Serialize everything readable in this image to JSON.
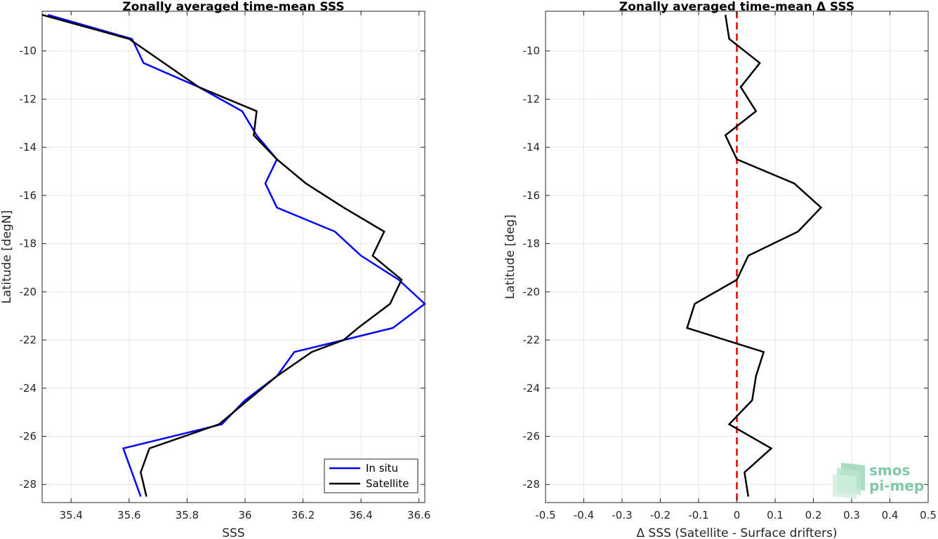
{
  "chart_data": [
    {
      "type": "line",
      "title": "Zonally averaged time-mean SSS",
      "xlabel": "SSS",
      "ylabel": "Latitude [degN]",
      "xlim": [
        35.3,
        36.62
      ],
      "ylim": [
        -28.75,
        -8.35
      ],
      "xticks": [
        35.4,
        35.6,
        35.8,
        36,
        36.2,
        36.4,
        36.6
      ],
      "xtick_labels": [
        "35.4",
        "35.6",
        "35.8",
        "36",
        "36.2",
        "36.4",
        "36.6"
      ],
      "yticks": [
        -10,
        -12,
        -14,
        -16,
        -18,
        -20,
        -22,
        -24,
        -26,
        -28
      ],
      "ytick_labels": [
        "-10",
        "-12",
        "-14",
        "-16",
        "-18",
        "-20",
        "-22",
        "-24",
        "-26",
        "-28"
      ],
      "grid": true,
      "legend_position": "bottom-right",
      "series": [
        {
          "name": "In situ",
          "color": "#0000ff",
          "x": [
            35.32,
            35.61,
            35.65,
            35.84,
            35.99,
            36.04,
            36.11,
            36.07,
            36.11,
            36.31,
            36.4,
            36.53,
            36.62,
            36.51,
            36.34,
            36.17,
            36.11,
            36.0,
            35.92,
            35.58,
            35.61,
            35.64
          ],
          "y": [
            -8.5,
            -9.5,
            -10.5,
            -11.5,
            -12.5,
            -13.5,
            -14.5,
            -15.5,
            -16.5,
            -17.5,
            -18.5,
            -19.5,
            -20.5,
            -21.5,
            -22.0,
            -22.5,
            -23.5,
            -24.5,
            -25.5,
            -26.5,
            -27.5,
            -28.5
          ]
        },
        {
          "name": "Satellite",
          "color": "#000000",
          "x": [
            35.3,
            35.6,
            35.84,
            36.04,
            36.03,
            36.11,
            36.21,
            36.34,
            36.48,
            36.44,
            36.54,
            36.5,
            36.39,
            36.34,
            36.23,
            36.11,
            35.91,
            35.67,
            35.64,
            35.66
          ],
          "y": [
            -8.5,
            -9.5,
            -11.5,
            -12.5,
            -13.5,
            -14.5,
            -15.5,
            -16.5,
            -17.5,
            -18.5,
            -19.5,
            -20.5,
            -21.5,
            -22.0,
            -22.5,
            -23.5,
            -25.5,
            -26.5,
            -27.5,
            -28.5
          ]
        }
      ]
    },
    {
      "type": "line",
      "title": "Zonally averaged time-mean Δ SSS",
      "xlabel": "Δ SSS (Satellite - Surface drifters)",
      "ylabel": "Latitude [deg]",
      "xlim": [
        -0.5,
        0.5
      ],
      "ylim": [
        -28.75,
        -8.35
      ],
      "xticks": [
        -0.5,
        -0.4,
        -0.3,
        -0.2,
        -0.1,
        0,
        0.1,
        0.2,
        0.3,
        0.4,
        0.5
      ],
      "xtick_labels": [
        "-0.5",
        "-0.4",
        "-0.3",
        "-0.2",
        "-0.1",
        "0",
        "0.1",
        "0.2",
        "0.3",
        "0.4",
        "0.5"
      ],
      "yticks": [
        -10,
        -12,
        -14,
        -16,
        -18,
        -20,
        -22,
        -24,
        -26,
        -28
      ],
      "ytick_labels": [
        "-10",
        "-12",
        "-14",
        "-16",
        "-18",
        "-20",
        "-22",
        "-24",
        "-26",
        "-28"
      ],
      "grid": true,
      "reference_line": {
        "x": 0,
        "color": "#e00000",
        "style": "dashed"
      },
      "series": [
        {
          "color": "#000000",
          "x": [
            -0.03,
            -0.02,
            0.06,
            0.01,
            0.05,
            -0.03,
            0.0,
            0.15,
            0.22,
            0.16,
            0.03,
            0.0,
            -0.11,
            -0.13,
            0.07,
            0.05,
            0.04,
            -0.02,
            0.09,
            0.02,
            0.03
          ],
          "y": [
            -8.5,
            -9.5,
            -10.5,
            -11.5,
            -12.5,
            -13.5,
            -14.5,
            -15.5,
            -16.5,
            -17.5,
            -18.5,
            -19.5,
            -20.5,
            -21.5,
            -22.5,
            -23.5,
            -24.5,
            -25.5,
            -26.5,
            -27.5,
            -28.5
          ]
        }
      ]
    }
  ],
  "logo": {
    "line1": "smos",
    "line2": "pi-mep",
    "color": "#7fc9a6"
  }
}
